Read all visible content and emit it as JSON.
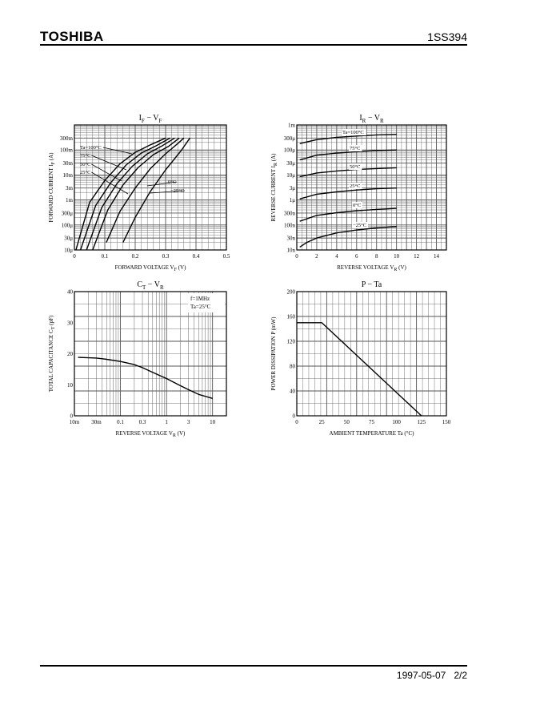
{
  "header": {
    "brand": "TOSHIBA",
    "part_number": "1SS394"
  },
  "footer": {
    "date": "1997-05-07",
    "page": "2/2"
  },
  "chart_data": [
    {
      "id": "if_vf",
      "type": "line",
      "title_main": "I",
      "title_sub": "F",
      "title_mid": " − V",
      "title_sub2": "F",
      "xlabel": "FORWARD VOLTAGE",
      "xlabel_sym": "V",
      "xlabel_sub": "F",
      "xlabel_unit": "(V)",
      "ylabel": "FORWARD CURRENT  I",
      "ylabel_sub": "F",
      "ylabel_unit": "(A)",
      "x_scale": "linear",
      "y_scale": "log",
      "xlim": [
        0,
        0.5
      ],
      "ylim": [
        1e-05,
        1
      ],
      "xticks": [
        {
          "v": 0,
          "l": "0"
        },
        {
          "v": 0.1,
          "l": "0.1"
        },
        {
          "v": 0.2,
          "l": "0.2"
        },
        {
          "v": 0.3,
          "l": "0.3"
        },
        {
          "v": 0.4,
          "l": "0.4"
        },
        {
          "v": 0.5,
          "l": "0.5"
        }
      ],
      "yticks": [
        {
          "v": 0.3,
          "l": "300m"
        },
        {
          "v": 0.1,
          "l": "100m"
        },
        {
          "v": 0.03,
          "l": "30m"
        },
        {
          "v": 0.01,
          "l": "10m"
        },
        {
          "v": 0.003,
          "l": "3m"
        },
        {
          "v": 0.001,
          "l": "1m"
        },
        {
          "v": 0.0003,
          "l": "300μ"
        },
        {
          "v": 0.0001,
          "l": "100μ"
        },
        {
          "v": 3e-05,
          "l": "30μ"
        },
        {
          "v": 1e-05,
          "l": "10μ"
        }
      ],
      "series": [
        {
          "name": "Ta=100°C",
          "x": [
            0.005,
            0.05,
            0.1,
            0.15,
            0.2,
            0.25,
            0.3
          ],
          "y": [
            1e-05,
            0.0008,
            0.006,
            0.028,
            0.08,
            0.16,
            0.3
          ]
        },
        {
          "name": "75°C",
          "x": [
            0.02,
            0.07,
            0.12,
            0.17,
            0.22,
            0.27,
            0.315
          ],
          "y": [
            1e-05,
            0.0006,
            0.005,
            0.025,
            0.075,
            0.15,
            0.3
          ]
        },
        {
          "name": "50°C",
          "x": [
            0.04,
            0.09,
            0.14,
            0.19,
            0.24,
            0.29,
            0.33
          ],
          "y": [
            1e-05,
            0.0005,
            0.0045,
            0.022,
            0.07,
            0.15,
            0.3
          ]
        },
        {
          "name": "25°C",
          "x": [
            0.06,
            0.11,
            0.16,
            0.21,
            0.26,
            0.31,
            0.345
          ],
          "y": [
            1e-05,
            0.0004,
            0.004,
            0.02,
            0.065,
            0.14,
            0.3
          ]
        },
        {
          "name": "0°C",
          "x": [
            0.105,
            0.15,
            0.2,
            0.25,
            0.3,
            0.34,
            0.36
          ],
          "y": [
            2e-05,
            0.00035,
            0.003,
            0.018,
            0.07,
            0.18,
            0.3
          ]
        },
        {
          "name": "−25°C",
          "x": [
            0.16,
            0.2,
            0.25,
            0.3,
            0.35,
            0.38
          ],
          "y": [
            2e-05,
            0.0002,
            0.0022,
            0.016,
            0.09,
            0.3
          ]
        }
      ]
    },
    {
      "id": "ir_vr",
      "type": "line",
      "title_main": "I",
      "title_sub": "R",
      "title_mid": " − V",
      "title_sub2": "R",
      "xlabel": "REVERSE VOLTAGE",
      "xlabel_sym": "V",
      "xlabel_sub": "R",
      "xlabel_unit": "(V)",
      "ylabel": "REVERSE CURRENT  I",
      "ylabel_sub": "R",
      "ylabel_unit": "(A)",
      "x_scale": "linear",
      "y_scale": "log",
      "xlim": [
        0,
        15
      ],
      "ylim": [
        1e-08,
        0.001
      ],
      "xticks": [
        {
          "v": 0,
          "l": "0"
        },
        {
          "v": 2,
          "l": "2"
        },
        {
          "v": 4,
          "l": "4"
        },
        {
          "v": 6,
          "l": "6"
        },
        {
          "v": 8,
          "l": "8"
        },
        {
          "v": 10,
          "l": "10"
        },
        {
          "v": 12,
          "l": "12"
        },
        {
          "v": 14,
          "l": "14"
        }
      ],
      "yticks": [
        {
          "v": 0.001,
          "l": "1m"
        },
        {
          "v": 0.0003,
          "l": "300μ"
        },
        {
          "v": 0.0001,
          "l": "100μ"
        },
        {
          "v": 3e-05,
          "l": "30μ"
        },
        {
          "v": 1e-05,
          "l": "10μ"
        },
        {
          "v": 3e-06,
          "l": "3μ"
        },
        {
          "v": 1e-06,
          "l": "1μ"
        },
        {
          "v": 3e-07,
          "l": "300n"
        },
        {
          "v": 1e-07,
          "l": "100n"
        },
        {
          "v": 3e-08,
          "l": "30n"
        },
        {
          "v": 1e-08,
          "l": "10n"
        }
      ],
      "series": [
        {
          "name": "Ta=100°C",
          "x": [
            0.3,
            2,
            4,
            6,
            8,
            10
          ],
          "y": [
            0.00018,
            0.00026,
            0.00032,
            0.00036,
            0.0004,
            0.00042
          ]
        },
        {
          "name": "75°C",
          "x": [
            0.3,
            2,
            4,
            6,
            8,
            10
          ],
          "y": [
            4e-05,
            6.2e-05,
            7.5e-05,
            8.5e-05,
            9.5e-05,
            0.0001
          ]
        },
        {
          "name": "50°C",
          "x": [
            0.3,
            2,
            4,
            6,
            8,
            10
          ],
          "y": [
            8.5e-06,
            1.2e-05,
            1.45e-05,
            1.65e-05,
            1.8e-05,
            1.95e-05
          ]
        },
        {
          "name": "25°C",
          "x": [
            0.3,
            2,
            4,
            6,
            8,
            10
          ],
          "y": [
            1.1e-06,
            1.7e-06,
            2.1e-06,
            2.5e-06,
            2.8e-06,
            3e-06
          ]
        },
        {
          "name": "0°C",
          "x": [
            0.3,
            2,
            4,
            6,
            8,
            10
          ],
          "y": [
            1.4e-07,
            2.4e-07,
            3.1e-07,
            3.7e-07,
            4.2e-07,
            4.6e-07
          ]
        },
        {
          "name": "−25°C",
          "x": [
            0.3,
            1,
            2,
            4,
            6,
            8,
            10
          ],
          "y": [
            1.3e-08,
            2e-08,
            3e-08,
            4.8e-08,
            6.3e-08,
            7.6e-08,
            8.6e-08
          ]
        }
      ]
    },
    {
      "id": "ct_vr",
      "type": "line",
      "title_main": "C",
      "title_sub": "T",
      "title_mid": " − V",
      "title_sub2": "R",
      "xlabel": "REVERSE VOLTAGE",
      "xlabel_sym": "V",
      "xlabel_sub": "R",
      "xlabel_unit": "(V)",
      "ylabel": "TOTAL CAPACITANCE  C",
      "ylabel_sub": "T",
      "ylabel_unit": "(pF)",
      "x_scale": "log",
      "y_scale": "linear",
      "xlim": [
        0.01,
        20
      ],
      "ylim": [
        0,
        40
      ],
      "xticks": [
        {
          "v": 0.01,
          "l": "10m"
        },
        {
          "v": 0.03,
          "l": "30m"
        },
        {
          "v": 0.1,
          "l": "0.1"
        },
        {
          "v": 0.3,
          "l": "0.3"
        },
        {
          "v": 1,
          "l": "1"
        },
        {
          "v": 3,
          "l": "3"
        },
        {
          "v": 10,
          "l": "10"
        }
      ],
      "yticks": [
        {
          "v": 0,
          "l": "0"
        },
        {
          "v": 10,
          "l": "10"
        },
        {
          "v": 20,
          "l": "20"
        },
        {
          "v": 30,
          "l": "30"
        },
        {
          "v": 40,
          "l": "40"
        }
      ],
      "annotation": [
        "f=1MHz",
        "Ta=25°C"
      ],
      "series": [
        {
          "x": [
            0.012,
            0.03,
            0.05,
            0.1,
            0.2,
            0.3,
            0.5,
            1,
            2,
            3,
            5,
            10
          ],
          "y": [
            18.8,
            18.6,
            18.2,
            17.5,
            16.5,
            15.5,
            14,
            12,
            9.7,
            8.4,
            6.9,
            5.6
          ]
        }
      ]
    },
    {
      "id": "p_ta",
      "type": "line",
      "title_main": "P",
      "title_sub": "",
      "title_mid": " − Ta",
      "title_sub2": "",
      "xlabel": "AMBIENT TEMPERATURE",
      "xlabel_sym": "Ta",
      "xlabel_sub": "",
      "xlabel_unit": "(°C)",
      "ylabel": "POWER DISSIPATION  P",
      "ylabel_sub": "",
      "ylabel_unit": "(mW)",
      "x_scale": "linear",
      "y_scale": "linear",
      "xlim": [
        0,
        150
      ],
      "ylim": [
        0,
        200
      ],
      "xticks": [
        {
          "v": 0,
          "l": "0"
        },
        {
          "v": 25,
          "l": "25"
        },
        {
          "v": 50,
          "l": "50"
        },
        {
          "v": 75,
          "l": "75"
        },
        {
          "v": 100,
          "l": "100"
        },
        {
          "v": 125,
          "l": "125"
        },
        {
          "v": 150,
          "l": "150"
        }
      ],
      "yticks": [
        {
          "v": 0,
          "l": "0"
        },
        {
          "v": 40,
          "l": "40"
        },
        {
          "v": 80,
          "l": "80"
        },
        {
          "v": 120,
          "l": "120"
        },
        {
          "v": 160,
          "l": "160"
        },
        {
          "v": 200,
          "l": "200"
        }
      ],
      "series": [
        {
          "x": [
            0,
            25,
            125
          ],
          "y": [
            150,
            150,
            0
          ]
        }
      ]
    }
  ]
}
